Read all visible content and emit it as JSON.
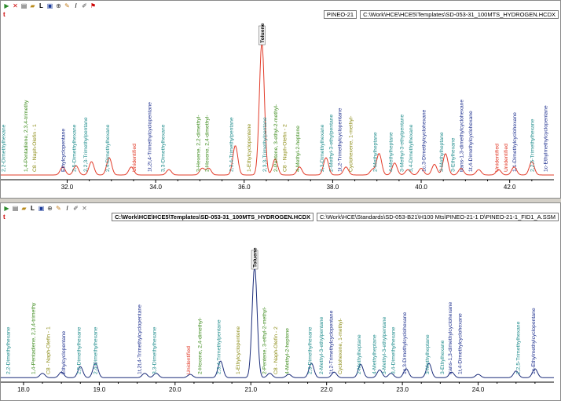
{
  "colors": {
    "red": "#e23c2a",
    "blue": "#1c2d7a",
    "teal": "#1b8a8a",
    "green": "#3b8a1a",
    "olive": "#8a8a12",
    "navy": "#1a2c8c",
    "redlbl": "#e0301e"
  },
  "toolbar_icons": [
    "play-icon",
    "close-x-icon",
    "print-icon",
    "open-folder-icon",
    "l-label-icon",
    "save-icon",
    "zoom-icon",
    "pencil-icon",
    "italic-i-icon",
    "edit-icon",
    "flag-icon"
  ],
  "top": {
    "sample": "PINEO-21",
    "path": "C:\\Work\\HCE\\HCE5\\Templates\\SD-053-31_100MTS_HYDROGEN.HCDX",
    "trace": "TOP",
    "chart_data": {
      "type": "line",
      "xlim": [
        30.5,
        43.0
      ],
      "ticks": [
        32.0,
        34.0,
        36.0,
        38.0,
        40.0,
        42.0
      ],
      "peaks": [
        [
          31.9,
          0.06
        ],
        [
          32.2,
          0.07
        ],
        [
          32.55,
          0.1
        ],
        [
          32.95,
          0.13
        ],
        [
          33.45,
          0.06
        ],
        [
          34.3,
          0.04
        ],
        [
          35.05,
          0.05
        ],
        [
          35.2,
          0.05
        ],
        [
          35.8,
          0.22
        ],
        [
          36.4,
          1.0
        ],
        [
          36.7,
          0.12
        ],
        [
          37.25,
          0.06
        ],
        [
          37.85,
          0.13
        ],
        [
          38.3,
          0.06
        ],
        [
          38.9,
          0.04
        ],
        [
          39.05,
          0.16
        ],
        [
          39.4,
          0.09
        ],
        [
          39.7,
          0.04
        ],
        [
          40.0,
          0.05
        ],
        [
          40.3,
          0.08
        ],
        [
          40.55,
          0.16
        ],
        [
          40.9,
          0.05
        ],
        [
          41.3,
          0.04
        ],
        [
          41.75,
          0.04
        ],
        [
          42.1,
          0.06
        ],
        [
          42.5,
          0.1
        ]
      ],
      "labels": [
        {
          "x": 30.6,
          "t": "2,2-Dimethylhexane",
          "c": "teal"
        },
        {
          "x": 31.1,
          "t": "1,4-Pentadiene, 2,3,4-trimethy",
          "c": "green"
        },
        {
          "x": 31.3,
          "t": "C8 - Naph-Olefin - 1",
          "c": "olive"
        },
        {
          "x": 31.95,
          "t": "Ethylcyclopentane",
          "c": "navy"
        },
        {
          "x": 32.2,
          "t": "2,5-Dimethylhexane",
          "c": "teal"
        },
        {
          "x": 32.45,
          "t": "2,2,3-Trimethylpentane",
          "c": "teal"
        },
        {
          "x": 32.95,
          "t": "2,4-Dimethylhexane",
          "c": "teal"
        },
        {
          "x": 33.55,
          "t": "Unidentified",
          "c": "redlbl"
        },
        {
          "x": 33.9,
          "t": "1t,2t,4-Trimethylcyclopentane",
          "c": "navy"
        },
        {
          "x": 34.2,
          "t": "3,3-Dimethylhexane",
          "c": "teal"
        },
        {
          "x": 35.0,
          "t": "3-Hexene, 2,2-dimethyl-",
          "c": "green"
        },
        {
          "x": 35.2,
          "t": "2-Hexene, 2,4-dimethyl-",
          "c": "green"
        },
        {
          "x": 35.75,
          "t": "2,3,4-Trimethylpentane",
          "c": "teal"
        },
        {
          "x": 36.15,
          "t": "1-Ethylcyclopentene",
          "c": "olive"
        },
        {
          "x": 36.5,
          "t": "2,3,3-Trimethylpentane",
          "c": "teal"
        },
        {
          "x": 36.75,
          "t": "2-Pentene, 3-ethyl-2-methyl-",
          "c": "green"
        },
        {
          "x": 36.95,
          "t": "C8 - Naph-Olefin - 2",
          "c": "olive"
        },
        {
          "x": 37.25,
          "t": "4-Methyl-2-heptene",
          "c": "green"
        },
        {
          "x": 37.8,
          "t": "2,3-Dimethylhexane",
          "c": "teal"
        },
        {
          "x": 38.0,
          "t": "2-Methyl-3-ethylpentane",
          "c": "teal"
        },
        {
          "x": 38.2,
          "t": "1t,2-Trimethylcyclopentane",
          "c": "navy"
        },
        {
          "x": 38.45,
          "t": "Cyclohexene, 1-methyl-",
          "c": "olive"
        },
        {
          "x": 39.0,
          "t": "2-Methylheptane",
          "c": "teal"
        },
        {
          "x": 39.35,
          "t": "4-Methylheptane",
          "c": "teal"
        },
        {
          "x": 39.6,
          "t": "3-Methyl-3-ethylpentane",
          "c": "teal"
        },
        {
          "x": 39.8,
          "t": "3,4-Dimethylhexane",
          "c": "teal"
        },
        {
          "x": 40.1,
          "t": "1c,3-Dimethylcyclohexane",
          "c": "navy"
        },
        {
          "x": 40.5,
          "t": "3-Methylheptane",
          "c": "teal"
        },
        {
          "x": 40.75,
          "t": "3-Ethylhexane",
          "c": "teal"
        },
        {
          "x": 40.95,
          "t": "trans-1,3-dimethylcyclohexane",
          "c": "navy"
        },
        {
          "x": 41.15,
          "t": "1t,4-Dimethylcyclohexane",
          "c": "navy"
        },
        {
          "x": 41.75,
          "t": "Unidentified",
          "c": "redlbl"
        },
        {
          "x": 41.95,
          "t": "Unidentified",
          "c": "redlbl"
        },
        {
          "x": 42.15,
          "t": "1,1-Dimethylcyclohexane",
          "c": "navy"
        },
        {
          "x": 42.55,
          "t": "2,2,5-Trimethylhexane",
          "c": "teal"
        },
        {
          "x": 42.85,
          "t": "1c-Ethylmethylcyclopentane",
          "c": "navy"
        }
      ],
      "top_label": "Toluene"
    }
  },
  "bot": {
    "path_bold": "C:\\Work\\HCE\\HCE5\\Templates\\SD-053-31_100MTS_HYDROGEN.HCDX",
    "path2": "C:\\Work\\HCE\\Standards\\SD-053-B21\\H100 Mts\\PINEO-21-1 D\\PINEO-21-1_FID1_A.SSM",
    "chart_data": {
      "type": "line",
      "xlim": [
        17.7,
        25.0
      ],
      "ticks": [
        18.0,
        19.0,
        20.0,
        21.0,
        22.0,
        23.0,
        24.0
      ],
      "peaks": [
        [
          18.25,
          0.04
        ],
        [
          18.5,
          0.05
        ],
        [
          18.75,
          0.1
        ],
        [
          18.95,
          0.13
        ],
        [
          19.6,
          0.04
        ],
        [
          19.75,
          0.04
        ],
        [
          20.2,
          0.03
        ],
        [
          20.6,
          0.15
        ],
        [
          21.05,
          1.0
        ],
        [
          21.25,
          0.04
        ],
        [
          21.5,
          0.03
        ],
        [
          21.8,
          0.13
        ],
        [
          22.1,
          0.05
        ],
        [
          22.45,
          0.12
        ],
        [
          22.7,
          0.07
        ],
        [
          22.85,
          0.04
        ],
        [
          23.05,
          0.08
        ],
        [
          23.35,
          0.13
        ],
        [
          23.65,
          0.05
        ],
        [
          24.0,
          0.03
        ],
        [
          24.5,
          0.06
        ],
        [
          24.75,
          0.08
        ]
      ],
      "labels": [
        {
          "x": 17.82,
          "t": "2,2-Dimethylhexane",
          "c": "teal"
        },
        {
          "x": 18.15,
          "t": "1,4-Pentadiene, 2,3,4-trimethy",
          "c": "green"
        },
        {
          "x": 18.35,
          "t": "C8 - Naph-Olefin - 1",
          "c": "olive"
        },
        {
          "x": 18.55,
          "t": "Ethylcyclopentane",
          "c": "navy"
        },
        {
          "x": 18.75,
          "t": "2,5-Dimethylhexane",
          "c": "teal"
        },
        {
          "x": 18.97,
          "t": "2,4-Dimethylhexane",
          "c": "teal"
        },
        {
          "x": 19.55,
          "t": "1t,2t,4-Trimethylcyclopentane",
          "c": "navy"
        },
        {
          "x": 19.75,
          "t": "3,3-Dimethylhexane",
          "c": "teal"
        },
        {
          "x": 20.2,
          "t": "Unidentified",
          "c": "redlbl"
        },
        {
          "x": 20.35,
          "t": "2-Hexene, 2,4-dimethyl-",
          "c": "green"
        },
        {
          "x": 20.6,
          "t": "2,3,4-Trimethylpentane",
          "c": "teal"
        },
        {
          "x": 20.85,
          "t": "1-Ethylcyclopentene",
          "c": "olive"
        },
        {
          "x": 21.2,
          "t": "2-Pentene, 3-ethyl-2-methyl-",
          "c": "green"
        },
        {
          "x": 21.35,
          "t": "C8 - Naph-Olefin - 2",
          "c": "olive"
        },
        {
          "x": 21.5,
          "t": "4-Methyl-2-heptene",
          "c": "green"
        },
        {
          "x": 21.8,
          "t": "2,3-Dimethylhexane",
          "c": "teal"
        },
        {
          "x": 21.95,
          "t": "2-Methyl-3-ethylpentane",
          "c": "teal"
        },
        {
          "x": 22.08,
          "t": "1t,2-Trimethylcyclopentane",
          "c": "navy"
        },
        {
          "x": 22.2,
          "t": "Cyclohexene, 1-methyl-",
          "c": "olive"
        },
        {
          "x": 22.45,
          "t": "2-Methylheptane",
          "c": "teal"
        },
        {
          "x": 22.65,
          "t": "4-Methylheptane",
          "c": "teal"
        },
        {
          "x": 22.78,
          "t": "3-Methyl-3-ethylpentane",
          "c": "teal"
        },
        {
          "x": 22.9,
          "t": "3,4-Dimethylhexane",
          "c": "teal"
        },
        {
          "x": 23.05,
          "t": "1c,3-Dimethylcyclohexane",
          "c": "navy"
        },
        {
          "x": 23.35,
          "t": "3-Methylheptane",
          "c": "teal"
        },
        {
          "x": 23.55,
          "t": "3-Ethylhexane",
          "c": "teal"
        },
        {
          "x": 23.65,
          "t": "trans-1,3-dimethylcyclohexane",
          "c": "navy"
        },
        {
          "x": 23.78,
          "t": "1t,4-Dimethylcyclohexane",
          "c": "navy"
        },
        {
          "x": 24.55,
          "t": "2,2,5-Trimethylhexane",
          "c": "teal"
        },
        {
          "x": 24.75,
          "t": "1c-Ethylmethylcyclopentane",
          "c": "navy"
        }
      ],
      "top_label": "Toluene"
    }
  }
}
